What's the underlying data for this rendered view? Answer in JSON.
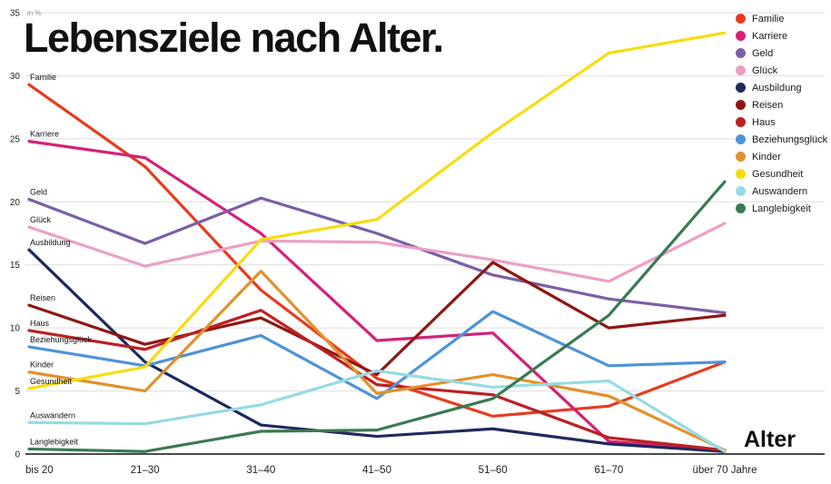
{
  "chart_data": {
    "type": "line",
    "title": "Lebensziele nach Alter.",
    "xlabel": "Alter",
    "y_unit": "in %",
    "ylim": [
      0,
      35
    ],
    "yticks": [
      0,
      5,
      10,
      15,
      20,
      25,
      30,
      35
    ],
    "grid": "horizontal",
    "legend_position": "top-right",
    "categories": [
      "bis 20",
      "21–30",
      "31–40",
      "41–50",
      "51–60",
      "61–70",
      "über 70 Jahre"
    ],
    "series": [
      {
        "name": "Familie",
        "color": "#e63c1e",
        "values": [
          29.3,
          22.8,
          13.0,
          6.0,
          3.0,
          3.8,
          7.3
        ]
      },
      {
        "name": "Karriere",
        "color": "#d62078",
        "values": [
          24.8,
          23.5,
          17.5,
          9.0,
          9.6,
          1.0,
          0.3
        ]
      },
      {
        "name": "Geld",
        "color": "#7a5fa6",
        "values": [
          20.2,
          16.7,
          20.3,
          17.5,
          14.2,
          12.3,
          11.2
        ]
      },
      {
        "name": "Glück",
        "color": "#eba0c5",
        "values": [
          18.0,
          14.9,
          16.9,
          16.8,
          15.4,
          13.7,
          18.3
        ]
      },
      {
        "name": "Ausbildung",
        "color": "#20295c",
        "values": [
          16.2,
          7.3,
          2.3,
          1.4,
          2.0,
          0.8,
          0.2
        ]
      },
      {
        "name": "Reisen",
        "color": "#8e1712",
        "values": [
          11.8,
          8.7,
          10.8,
          6.3,
          15.2,
          10.0,
          11.0
        ]
      },
      {
        "name": "Haus",
        "color": "#bb2025",
        "values": [
          9.8,
          8.3,
          11.4,
          5.5,
          4.7,
          1.3,
          0.3
        ]
      },
      {
        "name": "Beziehungsglück",
        "color": "#4e93d8",
        "values": [
          8.5,
          7.0,
          9.4,
          4.4,
          11.3,
          7.0,
          7.3
        ]
      },
      {
        "name": "Kinder",
        "color": "#e2912c",
        "values": [
          6.5,
          5.0,
          14.5,
          4.8,
          6.3,
          4.6,
          0.3
        ]
      },
      {
        "name": "Gesundheit",
        "color": "#f8dc0f",
        "values": [
          5.2,
          6.9,
          17.0,
          18.6,
          25.5,
          31.8,
          33.4
        ]
      },
      {
        "name": "Auswandern",
        "color": "#96dbe3",
        "values": [
          2.5,
          2.4,
          3.9,
          6.6,
          5.3,
          5.8,
          0.2
        ]
      },
      {
        "name": "Langlebigkeit",
        "color": "#397a52",
        "values": [
          0.4,
          0.2,
          1.8,
          1.9,
          4.4,
          11.0,
          21.6
        ]
      }
    ]
  }
}
